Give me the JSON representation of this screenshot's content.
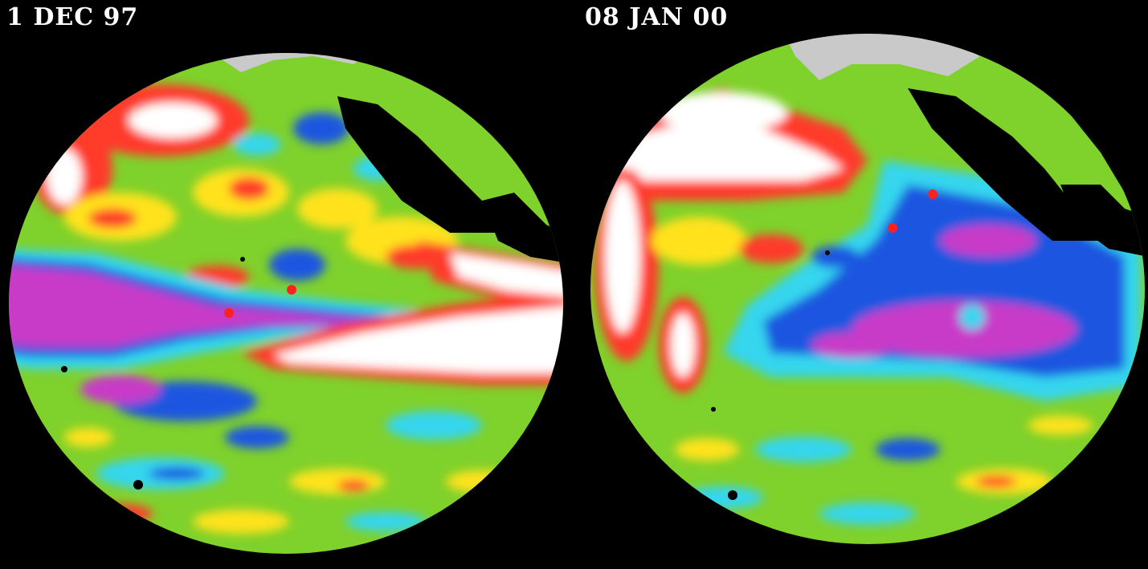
{
  "panels": [
    {
      "date_label": "1 DEC 97",
      "markers": 2
    },
    {
      "date_label": "08 JAN 00",
      "markers": 2
    }
  ],
  "colors": {
    "background": "#000000",
    "land_north": "#c9c9c9",
    "land": "#000000",
    "anomaly_very_high": "#ffffff",
    "anomaly_high": "#ff3b2a",
    "anomaly_mid_high": "#ffe21a",
    "neutral": "#7fd12b",
    "anomaly_mid_low": "#35d6ee",
    "anomaly_low": "#1e56e0",
    "anomaly_very_low": "#c83ac8",
    "marker": "#ff2020"
  }
}
